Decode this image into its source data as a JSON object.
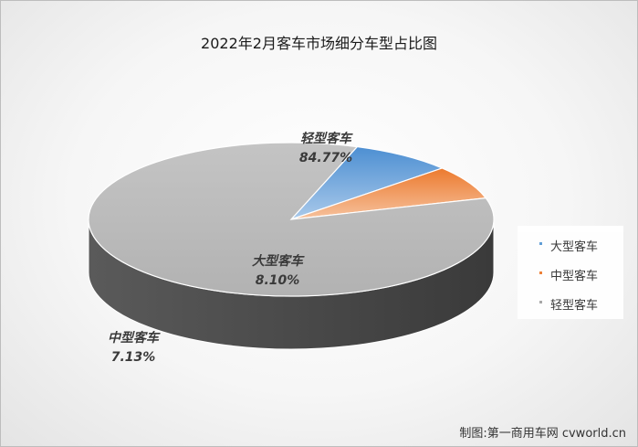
{
  "title": "2022年2月客车市场细分车型占比图",
  "credit": "制图:第一商用车网 cvworld.cn",
  "colors": {
    "large": "#5b9bd5",
    "medium": "#ed7d31",
    "light": "#a5a5a5"
  },
  "chart_data": {
    "type": "pie",
    "title": "2022年2月客车市场细分车型占比图",
    "slices": [
      {
        "name": "大型客车",
        "value": 8.1,
        "label": "8.10%"
      },
      {
        "name": "中型客车",
        "value": 7.13,
        "label": "7.13%"
      },
      {
        "name": "轻型客车",
        "value": 84.77,
        "label": "84.77%"
      }
    ],
    "legend": {
      "position": "right",
      "items": [
        "大型客车",
        "中型客车",
        "轻型客车"
      ]
    },
    "style": "3d"
  }
}
